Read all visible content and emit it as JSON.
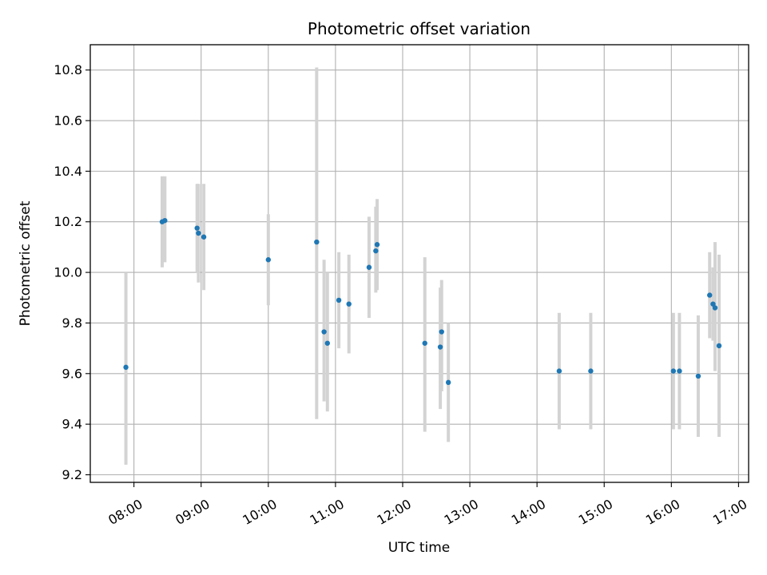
{
  "chart_data": {
    "type": "scatter",
    "title": "Photometric offset variation",
    "xlabel": "UTC time",
    "ylabel": "Photometric offset",
    "x_unit": "hour of day (UTC)",
    "xlim": [
      7.35,
      17.15
    ],
    "ylim": [
      9.17,
      10.9
    ],
    "grid": true,
    "x_ticks": [
      {
        "value": 8,
        "label": "08:00"
      },
      {
        "value": 9,
        "label": "09:00"
      },
      {
        "value": 10,
        "label": "10:00"
      },
      {
        "value": 11,
        "label": "11:00"
      },
      {
        "value": 12,
        "label": "12:00"
      },
      {
        "value": 13,
        "label": "13:00"
      },
      {
        "value": 14,
        "label": "14:00"
      },
      {
        "value": 15,
        "label": "15:00"
      },
      {
        "value": 16,
        "label": "16:00"
      },
      {
        "value": 17,
        "label": "17:00"
      }
    ],
    "y_ticks": [
      {
        "value": 9.2,
        "label": "9.2"
      },
      {
        "value": 9.4,
        "label": "9.4"
      },
      {
        "value": 9.6,
        "label": "9.6"
      },
      {
        "value": 9.8,
        "label": "9.8"
      },
      {
        "value": 10.0,
        "label": "10.0"
      },
      {
        "value": 10.2,
        "label": "10.2"
      },
      {
        "value": 10.4,
        "label": "10.4"
      },
      {
        "value": 10.6,
        "label": "10.6"
      },
      {
        "value": 10.8,
        "label": "10.8"
      }
    ],
    "marker_color": "#1f77b4",
    "errorbar_color": "#d3d3d3",
    "points": [
      {
        "x": 7.88,
        "y": 9.625,
        "ylow": 9.24,
        "yhigh": 10.0
      },
      {
        "x": 8.42,
        "y": 10.2,
        "ylow": 10.02,
        "yhigh": 10.38
      },
      {
        "x": 8.46,
        "y": 10.205,
        "ylow": 10.04,
        "yhigh": 10.38
      },
      {
        "x": 8.94,
        "y": 10.175,
        "ylow": 10.0,
        "yhigh": 10.35
      },
      {
        "x": 8.96,
        "y": 10.155,
        "ylow": 9.96,
        "yhigh": 10.35
      },
      {
        "x": 9.04,
        "y": 10.14,
        "ylow": 9.93,
        "yhigh": 10.35
      },
      {
        "x": 10.0,
        "y": 10.05,
        "ylow": 9.87,
        "yhigh": 10.23
      },
      {
        "x": 10.72,
        "y": 10.12,
        "ylow": 9.42,
        "yhigh": 10.81
      },
      {
        "x": 10.83,
        "y": 9.765,
        "ylow": 9.49,
        "yhigh": 10.05
      },
      {
        "x": 10.88,
        "y": 9.72,
        "ylow": 9.45,
        "yhigh": 10.0
      },
      {
        "x": 11.05,
        "y": 9.89,
        "ylow": 9.7,
        "yhigh": 10.08
      },
      {
        "x": 11.2,
        "y": 9.875,
        "ylow": 9.68,
        "yhigh": 10.07
      },
      {
        "x": 11.5,
        "y": 10.02,
        "ylow": 9.82,
        "yhigh": 10.22
      },
      {
        "x": 11.6,
        "y": 10.085,
        "ylow": 9.92,
        "yhigh": 10.26
      },
      {
        "x": 11.62,
        "y": 10.11,
        "ylow": 9.93,
        "yhigh": 10.29
      },
      {
        "x": 12.33,
        "y": 9.72,
        "ylow": 9.37,
        "yhigh": 10.06
      },
      {
        "x": 12.56,
        "y": 9.705,
        "ylow": 9.46,
        "yhigh": 9.94
      },
      {
        "x": 12.58,
        "y": 9.765,
        "ylow": 9.53,
        "yhigh": 9.97
      },
      {
        "x": 12.68,
        "y": 9.565,
        "ylow": 9.33,
        "yhigh": 9.8
      },
      {
        "x": 14.33,
        "y": 9.61,
        "ylow": 9.38,
        "yhigh": 9.84
      },
      {
        "x": 14.8,
        "y": 9.61,
        "ylow": 9.38,
        "yhigh": 9.84
      },
      {
        "x": 16.03,
        "y": 9.61,
        "ylow": 9.38,
        "yhigh": 9.84
      },
      {
        "x": 16.12,
        "y": 9.61,
        "ylow": 9.38,
        "yhigh": 9.84
      },
      {
        "x": 16.4,
        "y": 9.59,
        "ylow": 9.35,
        "yhigh": 9.83
      },
      {
        "x": 16.57,
        "y": 9.91,
        "ylow": 9.74,
        "yhigh": 10.08
      },
      {
        "x": 16.62,
        "y": 9.875,
        "ylow": 9.73,
        "yhigh": 10.02
      },
      {
        "x": 16.65,
        "y": 9.86,
        "ylow": 9.61,
        "yhigh": 10.12
      },
      {
        "x": 16.71,
        "y": 9.71,
        "ylow": 9.35,
        "yhigh": 10.07
      }
    ]
  }
}
